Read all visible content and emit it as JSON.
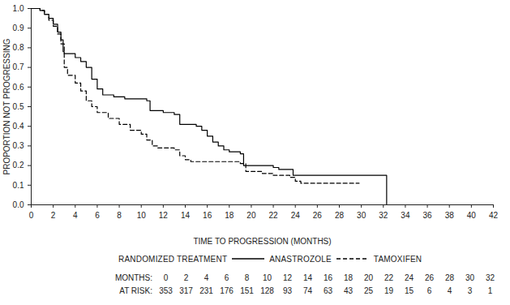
{
  "chart_data": {
    "type": "line",
    "xlabel": "TIME TO PROGRESSION (MONTHS)",
    "ylabel": "PROPORTION NOT PROGRESSING",
    "xlim": [
      0,
      42
    ],
    "xticks": [
      0,
      2,
      4,
      6,
      8,
      10,
      12,
      14,
      16,
      18,
      20,
      22,
      24,
      26,
      28,
      30,
      32,
      34,
      36,
      38,
      40,
      42
    ],
    "ylim": [
      0,
      1
    ],
    "yticks": [
      {
        "value": 0,
        "label": "0.0"
      },
      0.1,
      0.2,
      0.3,
      0.4,
      0.5,
      0.6,
      0.7,
      0.8,
      0.9,
      {
        "value": 1,
        "label": "1.0"
      }
    ],
    "legend": "bottom",
    "legend_title": "RANDOMIZED TREATMENT",
    "series": [
      {
        "name": "ANASTROZOLE",
        "color": "#000000",
        "line_style": "solid",
        "x": [
          0,
          0.8,
          1.2,
          1.6,
          2.0,
          2.4,
          2.7,
          2.9,
          3.0,
          4.0,
          4.5,
          5.0,
          5.5,
          6.0,
          6.5,
          7.5,
          8.5,
          10.5,
          10.8,
          12.0,
          13.0,
          13.5,
          15.0,
          15.5,
          16.0,
          16.5,
          17.0,
          17.5,
          18.0,
          19.0,
          19.3,
          22.0,
          22.5,
          23.8,
          32.3
        ],
        "values": [
          1.0,
          0.99,
          0.97,
          0.95,
          0.92,
          0.88,
          0.84,
          0.78,
          0.77,
          0.75,
          0.73,
          0.7,
          0.64,
          0.59,
          0.56,
          0.55,
          0.54,
          0.53,
          0.48,
          0.47,
          0.46,
          0.41,
          0.4,
          0.38,
          0.35,
          0.32,
          0.3,
          0.28,
          0.27,
          0.26,
          0.2,
          0.19,
          0.18,
          0.15,
          0.0
        ]
      },
      {
        "name": "TAMOXIFEN",
        "color": "#000000",
        "line_style": "dashed",
        "x": [
          0,
          0.8,
          1.2,
          1.6,
          2.0,
          2.4,
          2.7,
          3.0,
          3.3,
          4.0,
          4.5,
          5.0,
          5.5,
          6.0,
          7.0,
          8.0,
          9.0,
          10.0,
          10.5,
          11.0,
          11.5,
          13.0,
          13.5,
          14.0,
          14.5,
          19.0,
          19.5,
          21.0,
          22.0,
          23.5,
          24.0,
          24.5,
          29.8
        ],
        "values": [
          1.0,
          0.99,
          0.97,
          0.94,
          0.91,
          0.87,
          0.82,
          0.7,
          0.66,
          0.62,
          0.58,
          0.53,
          0.5,
          0.47,
          0.44,
          0.41,
          0.38,
          0.36,
          0.33,
          0.3,
          0.29,
          0.28,
          0.25,
          0.23,
          0.22,
          0.21,
          0.17,
          0.16,
          0.15,
          0.14,
          0.12,
          0.11,
          0.11
        ]
      }
    ],
    "at_risk": {
      "months_label": "MONTHS:",
      "at_risk_label": "AT RISK:",
      "months": [
        0,
        2,
        4,
        6,
        8,
        10,
        12,
        14,
        16,
        18,
        20,
        22,
        24,
        26,
        28,
        30,
        32
      ],
      "counts": [
        353,
        317,
        231,
        176,
        151,
        128,
        93,
        74,
        63,
        43,
        25,
        19,
        15,
        6,
        4,
        3,
        1
      ]
    }
  }
}
